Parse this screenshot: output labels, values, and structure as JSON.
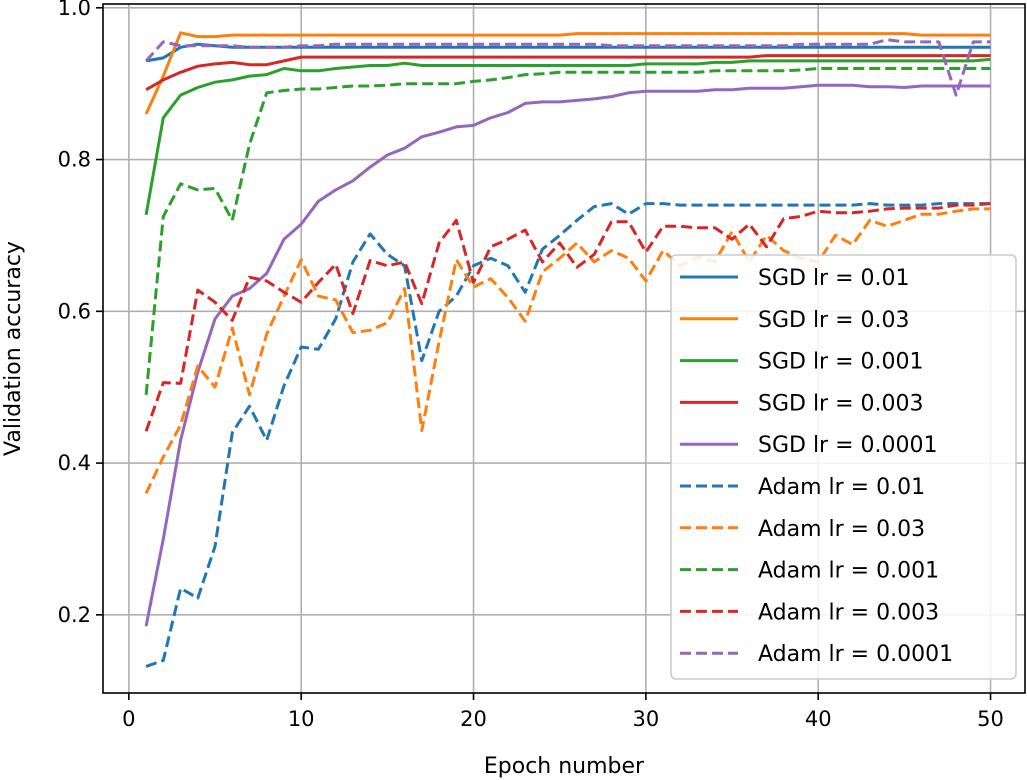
{
  "chart_data": {
    "type": "line",
    "title": "",
    "xlabel": "Epoch number",
    "ylabel": "Validation accuracy",
    "xlim": [
      -1.5,
      52
    ],
    "ylim": [
      0.097,
      1.005
    ],
    "x_ticks": [
      0,
      10,
      20,
      30,
      40,
      50
    ],
    "y_ticks": [
      0.2,
      0.4,
      0.6,
      0.8,
      1.0
    ],
    "grid": true,
    "legend_position": "lower-right",
    "x": [
      1,
      2,
      3,
      4,
      5,
      6,
      7,
      8,
      9,
      10,
      11,
      12,
      13,
      14,
      15,
      16,
      17,
      18,
      19,
      20,
      21,
      22,
      23,
      24,
      25,
      26,
      27,
      28,
      29,
      30,
      31,
      32,
      33,
      34,
      35,
      36,
      37,
      38,
      39,
      40,
      41,
      42,
      43,
      44,
      45,
      46,
      47,
      48,
      49,
      50
    ],
    "series": [
      {
        "name": "SGD lr = 0.01",
        "color": "#1f77b4",
        "dashed": false,
        "values": [
          0.93,
          0.934,
          0.948,
          0.952,
          0.95,
          0.948,
          0.948,
          0.948,
          0.948,
          0.948,
          0.948,
          0.948,
          0.948,
          0.948,
          0.948,
          0.948,
          0.948,
          0.948,
          0.948,
          0.948,
          0.948,
          0.948,
          0.948,
          0.948,
          0.948,
          0.948,
          0.948,
          0.948,
          0.948,
          0.948,
          0.948,
          0.948,
          0.948,
          0.948,
          0.948,
          0.948,
          0.948,
          0.948,
          0.948,
          0.948,
          0.948,
          0.948,
          0.948,
          0.948,
          0.948,
          0.948,
          0.948,
          0.948,
          0.948,
          0.948
        ]
      },
      {
        "name": "SGD lr = 0.03",
        "color": "#ff7f0e",
        "dashed": false,
        "values": [
          0.86,
          0.91,
          0.967,
          0.962,
          0.962,
          0.964,
          0.964,
          0.964,
          0.964,
          0.964,
          0.964,
          0.964,
          0.964,
          0.964,
          0.964,
          0.964,
          0.964,
          0.964,
          0.964,
          0.964,
          0.964,
          0.964,
          0.964,
          0.964,
          0.964,
          0.966,
          0.966,
          0.966,
          0.966,
          0.966,
          0.966,
          0.966,
          0.966,
          0.966,
          0.966,
          0.966,
          0.966,
          0.966,
          0.966,
          0.966,
          0.966,
          0.966,
          0.966,
          0.966,
          0.966,
          0.964,
          0.964,
          0.964,
          0.964,
          0.964
        ]
      },
      {
        "name": "SGD lr = 0.001",
        "color": "#2ca02c",
        "dashed": false,
        "values": [
          0.727,
          0.855,
          0.885,
          0.895,
          0.902,
          0.905,
          0.91,
          0.912,
          0.92,
          0.917,
          0.917,
          0.92,
          0.922,
          0.924,
          0.924,
          0.927,
          0.924,
          0.924,
          0.924,
          0.924,
          0.924,
          0.924,
          0.924,
          0.924,
          0.924,
          0.924,
          0.924,
          0.924,
          0.924,
          0.926,
          0.926,
          0.926,
          0.926,
          0.928,
          0.928,
          0.93,
          0.93,
          0.93,
          0.93,
          0.93,
          0.93,
          0.93,
          0.93,
          0.93,
          0.93,
          0.93,
          0.93,
          0.93,
          0.93,
          0.932
        ]
      },
      {
        "name": "SGD lr = 0.003",
        "color": "#d62728",
        "dashed": false,
        "values": [
          0.892,
          0.905,
          0.915,
          0.923,
          0.926,
          0.928,
          0.925,
          0.925,
          0.93,
          0.935,
          0.935,
          0.935,
          0.935,
          0.935,
          0.935,
          0.935,
          0.935,
          0.935,
          0.935,
          0.935,
          0.935,
          0.935,
          0.935,
          0.935,
          0.935,
          0.935,
          0.935,
          0.935,
          0.935,
          0.935,
          0.935,
          0.935,
          0.935,
          0.935,
          0.935,
          0.935,
          0.937,
          0.937,
          0.937,
          0.937,
          0.937,
          0.937,
          0.937,
          0.937,
          0.937,
          0.937,
          0.937,
          0.937,
          0.937,
          0.937
        ]
      },
      {
        "name": "SGD lr = 0.0001",
        "color": "#9467bd",
        "dashed": false,
        "values": [
          0.185,
          0.3,
          0.43,
          0.52,
          0.59,
          0.62,
          0.63,
          0.65,
          0.695,
          0.715,
          0.745,
          0.76,
          0.772,
          0.79,
          0.806,
          0.815,
          0.83,
          0.836,
          0.843,
          0.845,
          0.855,
          0.862,
          0.874,
          0.876,
          0.876,
          0.878,
          0.88,
          0.883,
          0.888,
          0.89,
          0.89,
          0.89,
          0.89,
          0.892,
          0.892,
          0.894,
          0.894,
          0.894,
          0.896,
          0.898,
          0.898,
          0.898,
          0.896,
          0.896,
          0.895,
          0.897,
          0.897,
          0.897,
          0.897,
          0.897
        ]
      },
      {
        "name": "Adam lr = 0.01",
        "color": "#1f77b4",
        "dashed": true,
        "values": [
          0.132,
          0.14,
          0.235,
          0.222,
          0.29,
          0.44,
          0.475,
          0.43,
          0.502,
          0.553,
          0.55,
          0.59,
          0.665,
          0.702,
          0.675,
          0.66,
          0.535,
          0.6,
          0.62,
          0.66,
          0.67,
          0.66,
          0.625,
          0.682,
          0.7,
          0.72,
          0.738,
          0.742,
          0.728,
          0.742,
          0.742,
          0.74,
          0.74,
          0.74,
          0.74,
          0.74,
          0.74,
          0.74,
          0.74,
          0.74,
          0.74,
          0.74,
          0.742,
          0.74,
          0.74,
          0.74,
          0.742,
          0.742,
          0.742,
          0.742
        ]
      },
      {
        "name": "Adam lr = 0.03",
        "color": "#ff7f0e",
        "dashed": true,
        "values": [
          0.36,
          0.408,
          0.45,
          0.528,
          0.5,
          0.578,
          0.49,
          0.57,
          0.62,
          0.668,
          0.62,
          0.615,
          0.572,
          0.575,
          0.585,
          0.63,
          0.443,
          0.56,
          0.668,
          0.632,
          0.643,
          0.618,
          0.587,
          0.652,
          0.67,
          0.69,
          0.665,
          0.68,
          0.67,
          0.64,
          0.68,
          0.66,
          0.672,
          0.665,
          0.705,
          0.665,
          0.7,
          0.68,
          0.67,
          0.665,
          0.7,
          0.688,
          0.72,
          0.712,
          0.72,
          0.728,
          0.728,
          0.732,
          0.735,
          0.735
        ]
      },
      {
        "name": "Adam lr = 0.001",
        "color": "#2ca02c",
        "dashed": true,
        "values": [
          0.49,
          0.725,
          0.768,
          0.76,
          0.762,
          0.72,
          0.82,
          0.888,
          0.891,
          0.893,
          0.893,
          0.895,
          0.897,
          0.897,
          0.898,
          0.9,
          0.9,
          0.9,
          0.9,
          0.903,
          0.905,
          0.908,
          0.912,
          0.913,
          0.915,
          0.915,
          0.915,
          0.915,
          0.915,
          0.915,
          0.915,
          0.915,
          0.915,
          0.917,
          0.917,
          0.917,
          0.917,
          0.917,
          0.918,
          0.92,
          0.92,
          0.92,
          0.92,
          0.92,
          0.92,
          0.92,
          0.92,
          0.92,
          0.92,
          0.92
        ]
      },
      {
        "name": "Adam lr = 0.003",
        "color": "#d62728",
        "dashed": true,
        "values": [
          0.442,
          0.506,
          0.505,
          0.628,
          0.612,
          0.588,
          0.645,
          0.64,
          0.625,
          0.612,
          0.638,
          0.662,
          0.597,
          0.667,
          0.66,
          0.665,
          0.61,
          0.69,
          0.72,
          0.638,
          0.685,
          0.695,
          0.707,
          0.665,
          0.69,
          0.658,
          0.675,
          0.718,
          0.718,
          0.678,
          0.712,
          0.712,
          0.71,
          0.71,
          0.695,
          0.715,
          0.685,
          0.722,
          0.725,
          0.732,
          0.73,
          0.73,
          0.732,
          0.735,
          0.736,
          0.736,
          0.736,
          0.74,
          0.74,
          0.742
        ]
      },
      {
        "name": "Adam lr = 0.0001",
        "color": "#9467bd",
        "dashed": true,
        "values": [
          0.93,
          0.955,
          0.95,
          0.95,
          0.95,
          0.95,
          0.948,
          0.948,
          0.948,
          0.95,
          0.95,
          0.952,
          0.952,
          0.952,
          0.952,
          0.952,
          0.952,
          0.952,
          0.952,
          0.952,
          0.952,
          0.952,
          0.952,
          0.952,
          0.952,
          0.952,
          0.952,
          0.95,
          0.95,
          0.95,
          0.95,
          0.95,
          0.95,
          0.95,
          0.95,
          0.95,
          0.95,
          0.95,
          0.952,
          0.952,
          0.952,
          0.952,
          0.952,
          0.958,
          0.955,
          0.955,
          0.955,
          0.885,
          0.955,
          0.955
        ]
      }
    ]
  }
}
